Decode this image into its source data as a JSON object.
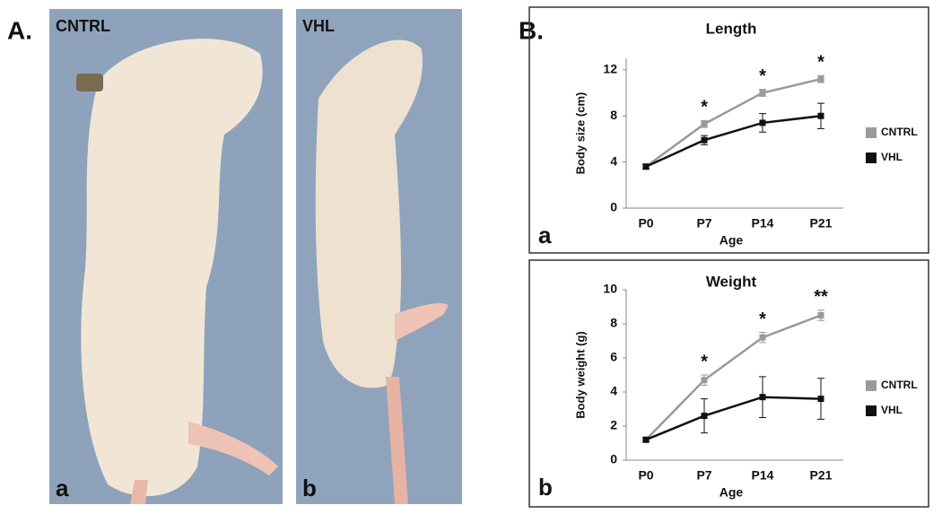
{
  "panel_a": {
    "label": "A.",
    "photos": [
      {
        "label": "CNTRL",
        "letter": "a"
      },
      {
        "label": "VHL",
        "letter": "b"
      }
    ]
  },
  "panel_b": {
    "label": "B."
  },
  "chart_data": [
    {
      "type": "line",
      "letter": "a",
      "title": "Length",
      "x_label": "Age",
      "y_label": "Body size (cm)",
      "categories": [
        "P0",
        "P7",
        "P14",
        "P21"
      ],
      "ylim": [
        0,
        13
      ],
      "yticks": [
        0,
        4,
        8,
        12
      ],
      "legend": "right",
      "annotations": [
        null,
        "*",
        "*",
        "*"
      ],
      "series": [
        {
          "name": "CNTRL",
          "color": "#9a9a9a",
          "values": [
            3.6,
            7.3,
            10.0,
            11.2
          ],
          "errors": [
            0.2,
            0.3,
            0.3,
            0.3
          ]
        },
        {
          "name": "VHL",
          "color": "#111111",
          "values": [
            3.6,
            5.9,
            7.4,
            8.0
          ],
          "errors": [
            0.2,
            0.4,
            0.8,
            1.1
          ]
        }
      ]
    },
    {
      "type": "line",
      "letter": "b",
      "title": "Weight",
      "x_label": "Age",
      "y_label": "Body weight (g)",
      "categories": [
        "P0",
        "P7",
        "P14",
        "P21"
      ],
      "ylim": [
        0,
        10
      ],
      "yticks": [
        0,
        2,
        4,
        6,
        8,
        10
      ],
      "legend": "right",
      "annotations": [
        null,
        "*",
        "*",
        "**"
      ],
      "series": [
        {
          "name": "CNTRL",
          "color": "#9a9a9a",
          "values": [
            1.2,
            4.7,
            7.2,
            8.5
          ],
          "errors": [
            0.1,
            0.3,
            0.3,
            0.3
          ]
        },
        {
          "name": "VHL",
          "color": "#111111",
          "values": [
            1.2,
            2.6,
            3.7,
            3.6
          ],
          "errors": [
            0.1,
            1.0,
            1.2,
            1.2
          ]
        }
      ]
    }
  ]
}
